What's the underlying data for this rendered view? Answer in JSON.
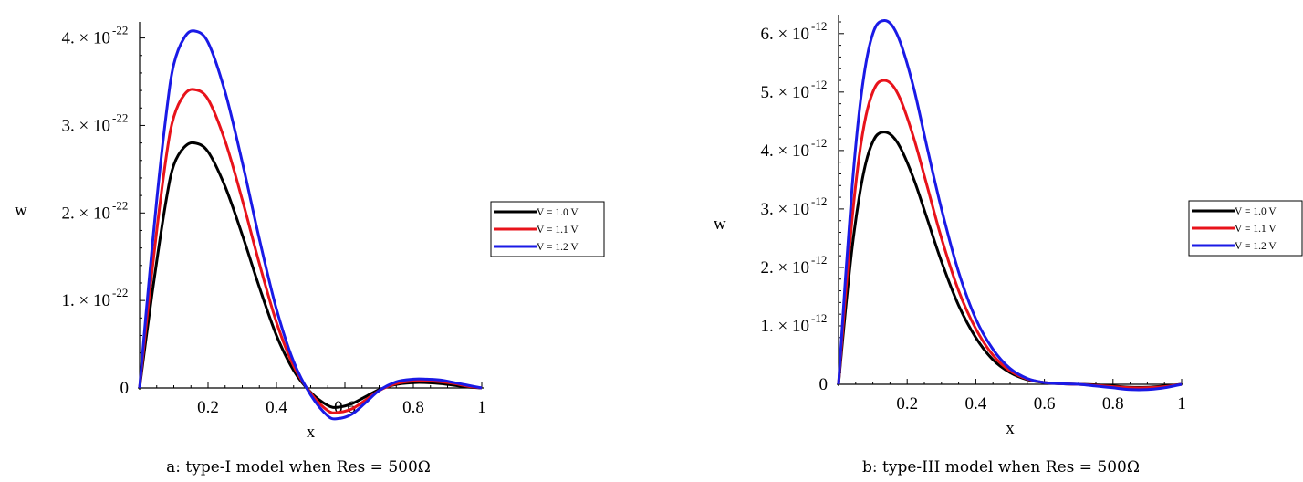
{
  "chart_data": [
    {
      "type": "line",
      "caption": "a: type-I model when Res = 500Ω",
      "xlabel": "x",
      "ylabel": "w",
      "xlim": [
        0,
        1
      ],
      "ylim": [
        0,
        4.1e-22
      ],
      "xticks": [
        "0.2",
        "0.4",
        "0.6",
        "0.8",
        "1"
      ],
      "yticks": [
        {
          "value": 0,
          "label": "0"
        },
        {
          "value": 1e-22,
          "mant": "1. × 10",
          "exp": "-22"
        },
        {
          "value": 2e-22,
          "mant": "2. × 10",
          "exp": "-22"
        },
        {
          "value": 3e-22,
          "mant": "3. × 10",
          "exp": "-22"
        },
        {
          "value": 4e-22,
          "mant": "4. × 10",
          "exp": "-22"
        }
      ],
      "legend_position": "right",
      "x": [
        0,
        0.02,
        0.05,
        0.08,
        0.1,
        0.13,
        0.16,
        0.2,
        0.25,
        0.3,
        0.35,
        0.4,
        0.45,
        0.5,
        0.55,
        0.58,
        0.62,
        0.66,
        0.7,
        0.75,
        0.8,
        0.84,
        0.88,
        0.92,
        0.96,
        1.0
      ],
      "series": [
        {
          "name": "V = 1.0 V",
          "color": "#000000",
          "values": [
            0,
            6e-23,
            1.45e-22,
            2.2e-22,
            2.55e-22,
            2.75e-22,
            2.8e-22,
            2.7e-22,
            2.3e-22,
            1.75e-22,
            1.15e-22,
            6e-23,
            2e-23,
            -5e-24,
            -2e-23,
            -2.2e-23,
            -1.8e-23,
            -1e-23,
            -2e-24,
            4e-24,
            6e-24,
            6e-24,
            5e-24,
            3e-24,
            1e-24,
            0
          ]
        },
        {
          "name": "V = 1.1 V",
          "color": "#e8131b",
          "values": [
            0,
            7.5e-23,
            1.8e-22,
            2.7e-22,
            3.1e-22,
            3.35e-22,
            3.41e-22,
            3.3e-22,
            2.82e-22,
            2.15e-22,
            1.42e-22,
            7.5e-23,
            2.5e-23,
            -6e-24,
            -2.6e-23,
            -2.8e-23,
            -2.4e-23,
            -1.4e-23,
            -3e-24,
            5e-24,
            8e-24,
            8e-24,
            7e-24,
            5e-24,
            2e-24,
            0
          ]
        },
        {
          "name": "V = 1.2 V",
          "color": "#1a1ae6",
          "values": [
            0,
            9e-23,
            2.15e-22,
            3.2e-22,
            3.7e-22,
            4e-22,
            4.08e-22,
            3.95e-22,
            3.38e-22,
            2.58e-22,
            1.7e-22,
            9e-23,
            3e-23,
            -8e-24,
            -3.2e-23,
            -3.5e-23,
            -3e-23,
            -1.7e-23,
            -3e-24,
            7e-24,
            1e-23,
            1e-23,
            9e-24,
            6e-24,
            3e-24,
            0
          ]
        }
      ]
    },
    {
      "type": "line",
      "caption": "b: type-III model when Res = 500Ω",
      "xlabel": "x",
      "ylabel": "w",
      "xlim": [
        0,
        1
      ],
      "ylim": [
        0,
        6.2e-12
      ],
      "xticks": [
        "0.2",
        "0.4",
        "0.6",
        "0.8",
        "1"
      ],
      "yticks": [
        {
          "value": 0,
          "label": "0"
        },
        {
          "value": 1e-12,
          "mant": "1. × 10",
          "exp": "-12"
        },
        {
          "value": 2e-12,
          "mant": "2. × 10",
          "exp": "-12"
        },
        {
          "value": 3e-12,
          "mant": "3. × 10",
          "exp": "-12"
        },
        {
          "value": 4e-12,
          "mant": "4. × 10",
          "exp": "-12"
        },
        {
          "value": 5e-12,
          "mant": "5. × 10",
          "exp": "-12"
        },
        {
          "value": 6e-12,
          "mant": "6. × 10",
          "exp": "-12"
        }
      ],
      "legend_position": "right",
      "x": [
        0,
        0.02,
        0.04,
        0.06,
        0.08,
        0.1,
        0.12,
        0.15,
        0.18,
        0.22,
        0.26,
        0.3,
        0.35,
        0.4,
        0.45,
        0.5,
        0.55,
        0.6,
        0.65,
        0.7,
        0.75,
        0.8,
        0.85,
        0.9,
        0.95,
        1.0
      ],
      "series": [
        {
          "name": "V = 1.0 V",
          "color": "#000000",
          "values": [
            0,
            1.25e-12,
            2.35e-12,
            3.2e-12,
            3.8e-12,
            4.15e-12,
            4.3e-12,
            4.28e-12,
            4.05e-12,
            3.5e-12,
            2.8e-12,
            2.1e-12,
            1.35e-12,
            8e-13,
            4.2e-13,
            2e-13,
            8e-14,
            3e-14,
            1e-14,
            0,
            -1e-14,
            -3e-14,
            -5e-14,
            -5e-14,
            -3e-14,
            0
          ]
        },
        {
          "name": "V = 1.1 V",
          "color": "#e8131b",
          "values": [
            0,
            1.5e-12,
            2.85e-12,
            3.9e-12,
            4.6e-12,
            5e-12,
            5.18e-12,
            5.16e-12,
            4.88e-12,
            4.2e-12,
            3.35e-12,
            2.5e-12,
            1.6e-12,
            9.5e-13,
            5e-13,
            2.3e-13,
            9e-14,
            3e-14,
            1e-14,
            0,
            -2e-14,
            -4e-14,
            -6e-14,
            -6e-14,
            -4e-14,
            0
          ]
        },
        {
          "name": "V = 1.2 V",
          "color": "#1a1ae6",
          "values": [
            0,
            1.8e-12,
            3.4e-12,
            4.65e-12,
            5.5e-12,
            6e-12,
            6.2e-12,
            6.18e-12,
            5.85e-12,
            5.05e-12,
            4e-12,
            3e-12,
            1.92e-12,
            1.12e-12,
            6e-13,
            2.7e-13,
            1e-13,
            3e-14,
            1e-14,
            0,
            -3e-14,
            -6e-14,
            -9e-14,
            -9e-14,
            -6e-14,
            0
          ]
        }
      ]
    }
  ]
}
